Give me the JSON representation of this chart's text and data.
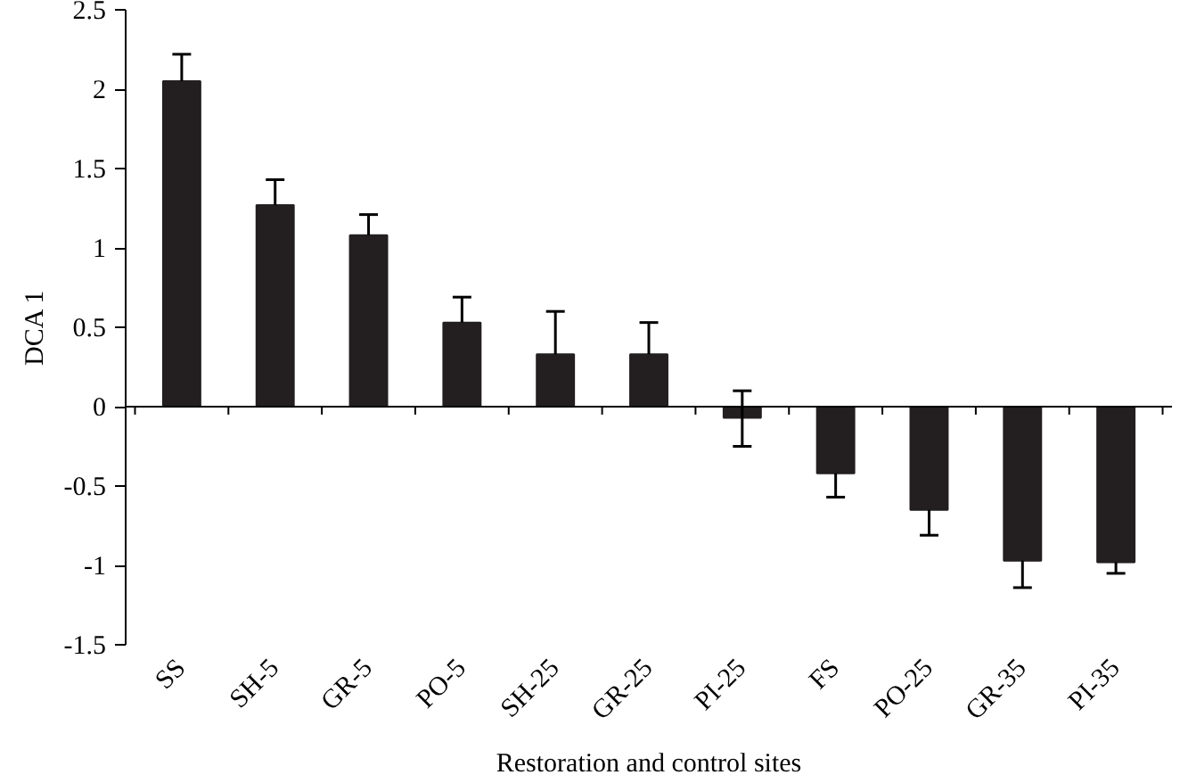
{
  "chart_data": {
    "type": "bar",
    "xlabel": "Restoration and control sites",
    "ylabel": "DCA 1",
    "categories": [
      "SS",
      "SH-5",
      "GR-5",
      "PO-5",
      "SH-25",
      "GR-25",
      "PI-25",
      "FS",
      "PO-25",
      "GR-35",
      "PI-35"
    ],
    "values": [
      2.05,
      1.27,
      1.08,
      0.53,
      0.33,
      0.33,
      -0.07,
      -0.42,
      -0.65,
      -0.97,
      -0.98
    ],
    "errors": [
      [
        2.05,
        2.22
      ],
      [
        1.27,
        1.43
      ],
      [
        1.08,
        1.21
      ],
      [
        0.53,
        0.69
      ],
      [
        0.33,
        0.6
      ],
      [
        0.33,
        0.53
      ],
      [
        -0.25,
        0.1
      ],
      [
        -0.57,
        -0.42
      ],
      [
        -0.81,
        -0.65
      ],
      [
        -1.14,
        -0.97
      ],
      [
        -1.05,
        -0.98
      ]
    ],
    "color": "#231f20",
    "ylim": [
      -1.5,
      2.5
    ],
    "yticks": [
      -1.5,
      -1,
      -0.5,
      0,
      0.5,
      1,
      1.5,
      2,
      2.5
    ]
  }
}
